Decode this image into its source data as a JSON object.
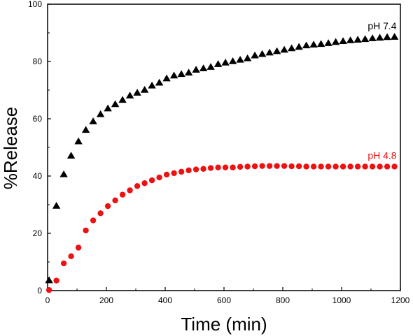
{
  "chart_data": {
    "type": "scatter",
    "title": "",
    "xlabel": "Time (min)",
    "ylabel": "%Release",
    "xlim": [
      0,
      1200
    ],
    "ylim": [
      0,
      100
    ],
    "xticks": [
      0,
      200,
      400,
      600,
      800,
      1000,
      1200
    ],
    "yticks": [
      0,
      20,
      40,
      60,
      80,
      100
    ],
    "grid": false,
    "legend": "none",
    "series": [
      {
        "name": "pH 7.4",
        "color": "#000000",
        "marker": "triangle-up",
        "x": [
          5,
          30,
          55,
          80,
          105,
          130,
          155,
          180,
          205,
          230,
          255,
          280,
          305,
          330,
          355,
          380,
          405,
          430,
          455,
          480,
          505,
          530,
          555,
          580,
          605,
          630,
          655,
          680,
          705,
          730,
          755,
          780,
          805,
          830,
          855,
          880,
          905,
          930,
          955,
          980,
          1005,
          1030,
          1055,
          1080,
          1105,
          1130,
          1155,
          1180
        ],
        "y": [
          3.5,
          29.5,
          40.5,
          47,
          52,
          56,
          59,
          61.5,
          63.5,
          65,
          66.5,
          68,
          69,
          70,
          71.5,
          72.5,
          74,
          75,
          75.5,
          76,
          77,
          77.5,
          78,
          79,
          79.5,
          80,
          80.5,
          81,
          82,
          82.5,
          83,
          83.5,
          84,
          84.5,
          85,
          85.5,
          85.8,
          86,
          86.3,
          86.7,
          87,
          87.3,
          87.5,
          87.7,
          88,
          88.2,
          88.4,
          88.5
        ]
      },
      {
        "name": "pH 4.8",
        "color": "#ee1111",
        "marker": "circle",
        "x": [
          5,
          30,
          55,
          80,
          105,
          130,
          155,
          180,
          205,
          230,
          255,
          280,
          305,
          330,
          355,
          380,
          405,
          430,
          455,
          480,
          505,
          530,
          555,
          580,
          605,
          630,
          655,
          680,
          705,
          730,
          755,
          780,
          805,
          830,
          855,
          880,
          905,
          930,
          955,
          980,
          1005,
          1030,
          1055,
          1080,
          1105,
          1130,
          1155,
          1180
        ],
        "y": [
          0.2,
          3.5,
          9.5,
          12,
          15,
          21,
          24.5,
          27,
          29.5,
          31.5,
          33.5,
          35,
          36.5,
          37.5,
          38.5,
          39.5,
          40.5,
          41,
          41.5,
          42,
          42.3,
          42.5,
          42.8,
          43,
          43,
          43,
          43.2,
          43.3,
          43.4,
          43.5,
          43.5,
          43.5,
          43.5,
          43.4,
          43.4,
          43.3,
          43.3,
          43.3,
          43.3,
          43.3,
          43.3,
          43.3,
          43.3,
          43.3,
          43.3,
          43.3,
          43.3,
          43.3
        ]
      }
    ],
    "annotations": [
      {
        "text": "pH 7.4",
        "color": "#000000",
        "at_x": 1180,
        "at_y": 88.5
      },
      {
        "text": "pH 4.8",
        "color": "#ee1111",
        "at_x": 1180,
        "at_y": 43.3
      }
    ]
  }
}
